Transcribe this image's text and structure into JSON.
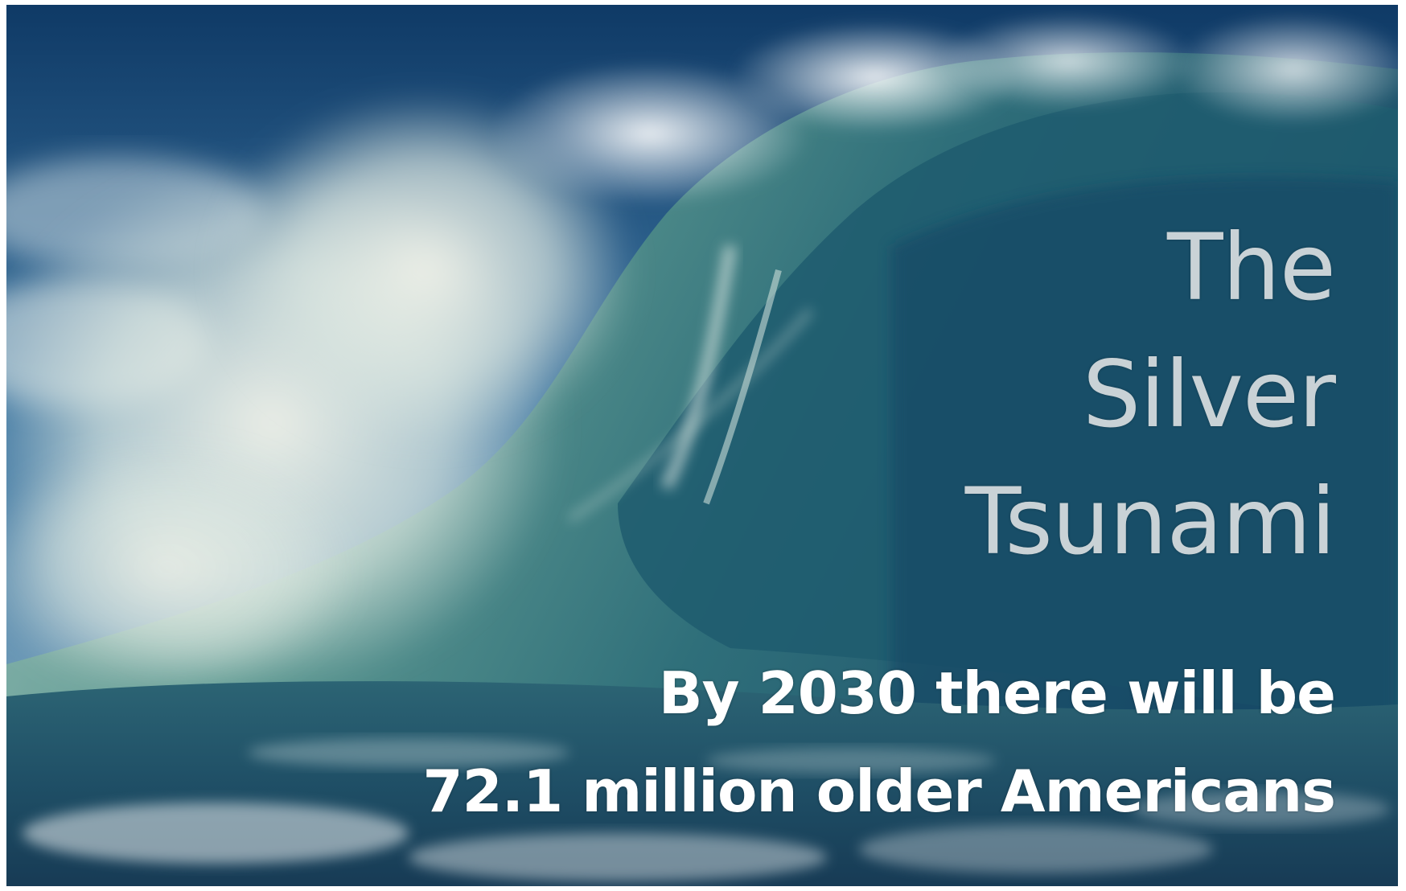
{
  "title": {
    "line1": "The",
    "line2": "Silver",
    "line3": "Tsunami"
  },
  "caption": {
    "line1": "By 2030 there will be",
    "line2": "72.1 million older Americans"
  },
  "colors": {
    "title_text": "#c9d2d6",
    "caption_text": "#ffffff",
    "sky": "#2f6b95",
    "wave_deep": "#1e5a72",
    "wave_light": "#5f9a96",
    "foam": "#e6eeea"
  }
}
